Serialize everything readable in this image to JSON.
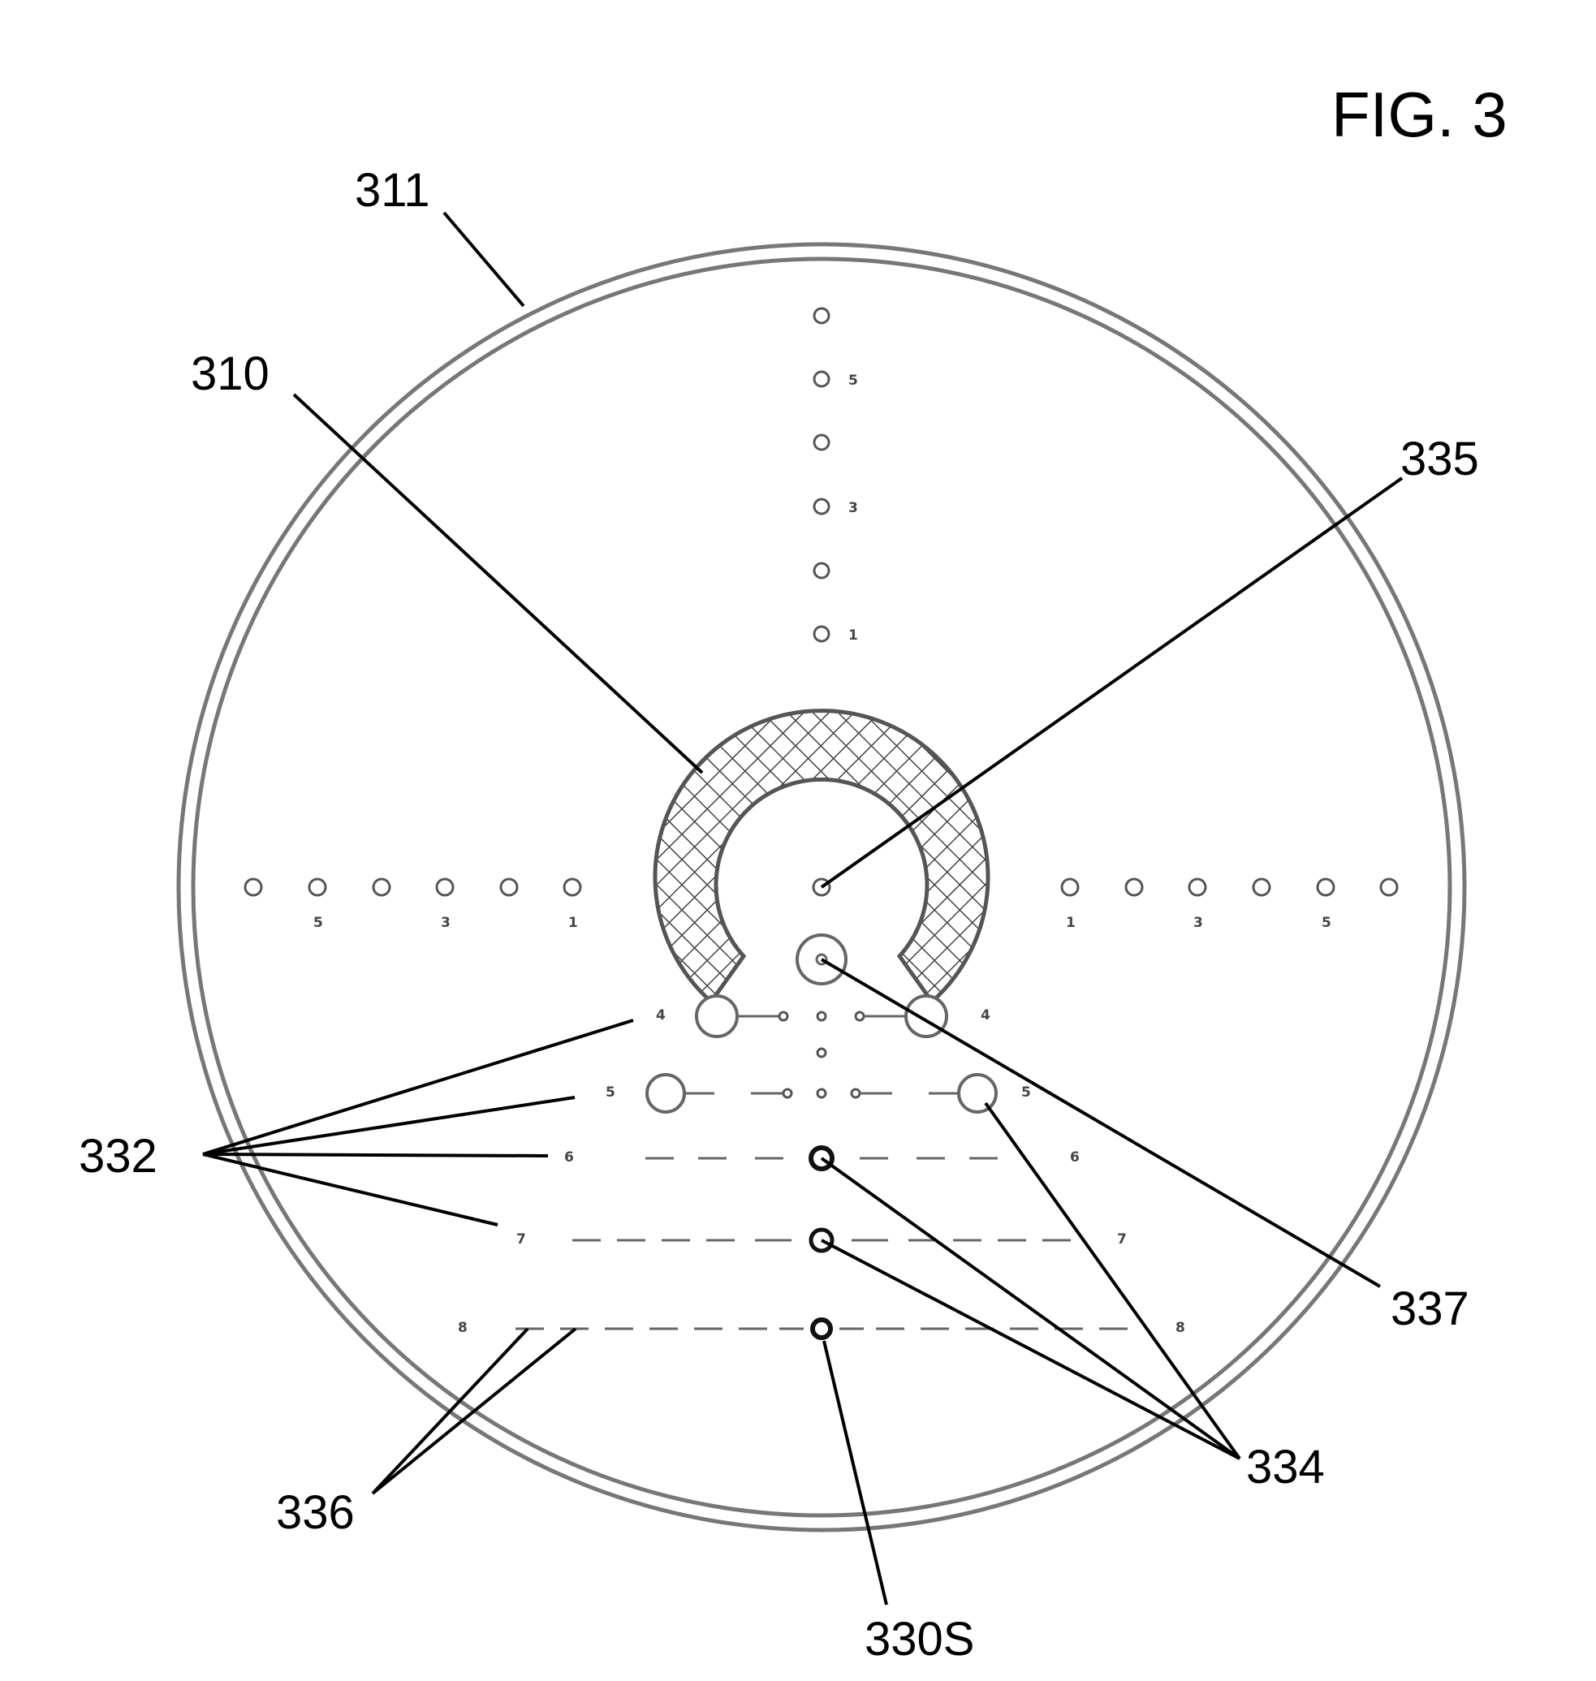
{
  "figure": {
    "title": "FIG. 3",
    "labels": {
      "l311": "311",
      "l310": "310",
      "l335": "335",
      "l332": "332",
      "l337": "337",
      "l334": "334",
      "l336": "336",
      "l330S": "330S"
    },
    "scale_digits": {
      "vertical": [
        "5",
        "3",
        "1"
      ],
      "left": [
        "5",
        "3",
        "1"
      ],
      "right": [
        "1",
        "3",
        "5"
      ],
      "row4": "4",
      "row5": "5",
      "row6": "6",
      "row7": "7",
      "row8": "8"
    }
  }
}
